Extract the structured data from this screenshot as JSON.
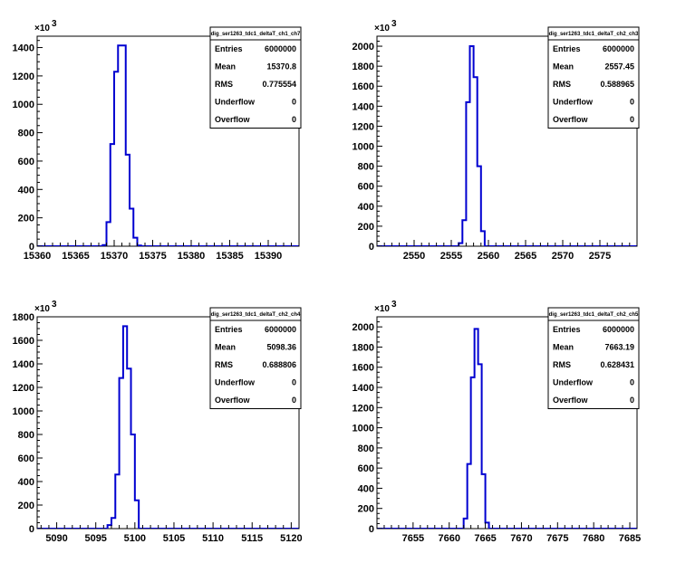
{
  "chart_data": [
    {
      "type": "histogram",
      "title": "dig_ser1263_tdc1_deltaT_ch1_ch7",
      "y_exponent_label": "×10³",
      "y_scale_factor": 1000,
      "xlim": [
        15360,
        15394
      ],
      "ylim": [
        0,
        1480
      ],
      "xticks": [
        15360,
        15365,
        15370,
        15375,
        15380,
        15385,
        15390
      ],
      "yticks": [
        0,
        200,
        400,
        600,
        800,
        1000,
        1200,
        1400
      ],
      "x": [
        15368,
        15368.5,
        15369,
        15369.5,
        15370,
        15370.5,
        15371,
        15371.5,
        15372,
        15372.5,
        15373
      ],
      "values": [
        0,
        8,
        170,
        720,
        1230,
        1415,
        1415,
        645,
        265,
        60,
        5
      ],
      "stats": [
        {
          "label": "Entries",
          "value": "6000000"
        },
        {
          "label": "Mean",
          "value": "15370.8"
        },
        {
          "label": "RMS",
          "value": "0.775554"
        },
        {
          "label": "Underflow",
          "value": "0"
        },
        {
          "label": "Overflow",
          "value": "0"
        }
      ]
    },
    {
      "type": "histogram",
      "title": "dig_ser1263_tdc1_deltaT_ch2_ch3",
      "y_exponent_label": "×10³",
      "y_scale_factor": 1000,
      "xlim": [
        2545,
        2580
      ],
      "ylim": [
        0,
        2100
      ],
      "xticks": [
        2550,
        2555,
        2560,
        2565,
        2570,
        2575
      ],
      "yticks": [
        0,
        200,
        400,
        600,
        800,
        1000,
        1200,
        1400,
        1600,
        1800,
        2000
      ],
      "x": [
        2555.5,
        2556,
        2556.5,
        2557,
        2557.5,
        2558,
        2558.5,
        2559
      ],
      "values": [
        0,
        30,
        260,
        1440,
        2000,
        1690,
        800,
        150
      ],
      "stats": [
        {
          "label": "Entries",
          "value": "6000000"
        },
        {
          "label": "Mean",
          "value": "2557.45"
        },
        {
          "label": "RMS",
          "value": "0.588965"
        },
        {
          "label": "Underflow",
          "value": "0"
        },
        {
          "label": "Overflow",
          "value": "0"
        }
      ]
    },
    {
      "type": "histogram",
      "title": "dig_ser1263_tdc1_deltaT_ch2_ch4",
      "y_exponent_label": "×10³",
      "y_scale_factor": 1000,
      "xlim": [
        5087.5,
        5121
      ],
      "ylim": [
        0,
        1800
      ],
      "xticks": [
        5090,
        5095,
        5100,
        5105,
        5110,
        5115,
        5120
      ],
      "yticks": [
        0,
        200,
        400,
        600,
        800,
        1000,
        1200,
        1400,
        1600,
        1800
      ],
      "x": [
        5096,
        5096.5,
        5097,
        5097.5,
        5098,
        5098.5,
        5099,
        5099.5,
        5100
      ],
      "values": [
        0,
        30,
        90,
        460,
        1280,
        1720,
        1360,
        800,
        240
      ],
      "stats": [
        {
          "label": "Entries",
          "value": "6000000"
        },
        {
          "label": "Mean",
          "value": "5098.36"
        },
        {
          "label": "RMS",
          "value": "0.688806"
        },
        {
          "label": "Underflow",
          "value": "0"
        },
        {
          "label": "Overflow",
          "value": "0"
        }
      ]
    },
    {
      "type": "histogram",
      "title": "dig_ser1263_tdc1_deltaT_ch2_ch5",
      "y_exponent_label": "×10³",
      "y_scale_factor": 1000,
      "xlim": [
        7650,
        7686
      ],
      "ylim": [
        0,
        2100
      ],
      "xticks": [
        7655,
        7660,
        7665,
        7670,
        7675,
        7680,
        7685
      ],
      "yticks": [
        0,
        200,
        400,
        600,
        800,
        1000,
        1200,
        1400,
        1600,
        1800,
        2000
      ],
      "x": [
        7661.5,
        7662,
        7662.5,
        7663,
        7663.5,
        7664,
        7664.5,
        7665
      ],
      "values": [
        0,
        100,
        640,
        1500,
        1980,
        1630,
        540,
        60
      ],
      "stats": [
        {
          "label": "Entries",
          "value": "6000000"
        },
        {
          "label": "Mean",
          "value": "7663.19"
        },
        {
          "label": "RMS",
          "value": "0.628431"
        },
        {
          "label": "Underflow",
          "value": "0"
        },
        {
          "label": "Overflow",
          "value": "0"
        }
      ]
    }
  ],
  "colors": {
    "histogram_line": "#0000d0",
    "axis": "#000000",
    "background": "#ffffff"
  }
}
